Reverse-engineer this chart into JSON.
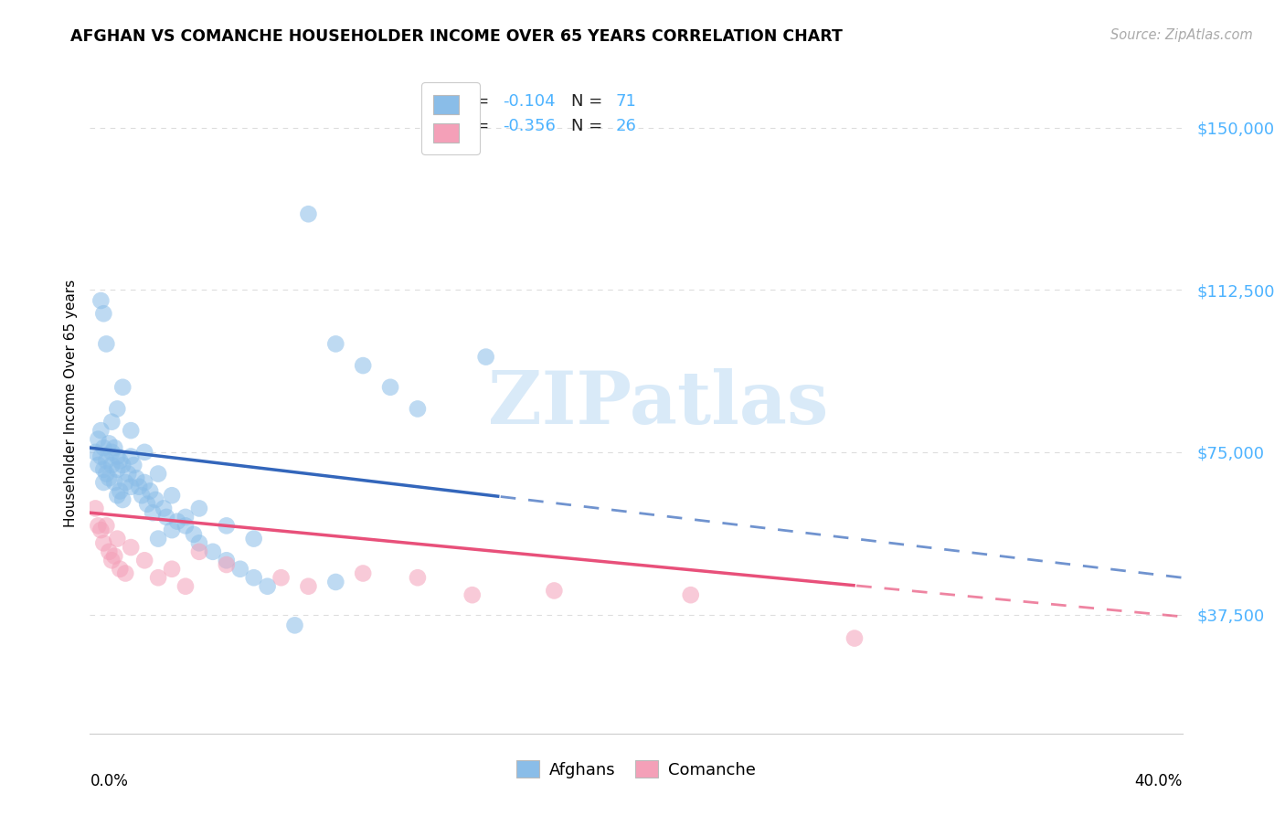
{
  "title": "AFGHAN VS COMANCHE HOUSEHOLDER INCOME OVER 65 YEARS CORRELATION CHART",
  "source": "Source: ZipAtlas.com",
  "ylabel": "Householder Income Over 65 years",
  "xlim": [
    0.0,
    40.0
  ],
  "ylim": [
    10000,
    162500
  ],
  "yticks": [
    37500,
    75000,
    112500,
    150000
  ],
  "ytick_labels": [
    "$37,500",
    "$75,000",
    "$112,500",
    "$150,000"
  ],
  "afghan_R": -0.104,
  "afghan_N": 71,
  "comanche_R": -0.356,
  "comanche_N": 26,
  "afghan_color": "#8abde8",
  "comanche_color": "#f4a0b8",
  "afghan_line_color": "#3366bb",
  "comanche_line_color": "#e8507a",
  "tick_color": "#4db3ff",
  "grid_color": "#dddddd",
  "watermark_color": "#c5dff5",
  "afghan_x": [
    0.2,
    0.3,
    0.3,
    0.4,
    0.4,
    0.5,
    0.5,
    0.5,
    0.6,
    0.6,
    0.7,
    0.7,
    0.8,
    0.8,
    0.9,
    0.9,
    1.0,
    1.0,
    1.0,
    1.1,
    1.1,
    1.2,
    1.2,
    1.3,
    1.4,
    1.5,
    1.5,
    1.6,
    1.7,
    1.8,
    1.9,
    2.0,
    2.1,
    2.2,
    2.3,
    2.4,
    2.5,
    2.7,
    2.8,
    3.0,
    3.2,
    3.5,
    3.8,
    4.0,
    4.5,
    5.0,
    5.5,
    6.0,
    6.5,
    7.5,
    8.0,
    9.0,
    10.0,
    11.0,
    12.0,
    0.4,
    0.5,
    0.6,
    0.8,
    1.0,
    1.2,
    1.5,
    2.0,
    2.5,
    3.0,
    3.5,
    4.0,
    5.0,
    6.0,
    9.0,
    14.5
  ],
  "afghan_y": [
    75000,
    78000,
    72000,
    80000,
    74000,
    76000,
    71000,
    68000,
    73000,
    70000,
    77000,
    69000,
    75000,
    72000,
    76000,
    68000,
    74000,
    71000,
    65000,
    73000,
    66000,
    72000,
    64000,
    68000,
    70000,
    74000,
    67000,
    72000,
    69000,
    67000,
    65000,
    68000,
    63000,
    66000,
    61000,
    64000,
    55000,
    62000,
    60000,
    57000,
    59000,
    58000,
    56000,
    54000,
    52000,
    50000,
    48000,
    46000,
    44000,
    35000,
    130000,
    100000,
    95000,
    90000,
    85000,
    110000,
    107000,
    100000,
    82000,
    85000,
    90000,
    80000,
    75000,
    70000,
    65000,
    60000,
    62000,
    58000,
    55000,
    45000,
    97000
  ],
  "comanche_x": [
    0.2,
    0.3,
    0.4,
    0.5,
    0.6,
    0.7,
    0.8,
    0.9,
    1.0,
    1.1,
    1.3,
    1.5,
    2.0,
    2.5,
    3.0,
    3.5,
    4.0,
    5.0,
    7.0,
    8.0,
    10.0,
    12.0,
    14.0,
    17.0,
    22.0,
    28.0
  ],
  "comanche_y": [
    62000,
    58000,
    57000,
    54000,
    58000,
    52000,
    50000,
    51000,
    55000,
    48000,
    47000,
    53000,
    50000,
    46000,
    48000,
    44000,
    52000,
    49000,
    46000,
    44000,
    47000,
    46000,
    42000,
    43000,
    42000,
    32000
  ],
  "legend_r_color": "#000000",
  "legend_n_color": "#4db3ff"
}
